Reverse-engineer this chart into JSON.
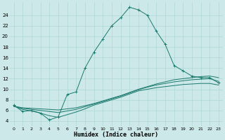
{
  "xlabel": "Humidex (Indice chaleur)",
  "bg_color": "#cce8e8",
  "grid_color": "#b0d8d8",
  "line_color": "#1a7a6e",
  "xlim": [
    -0.5,
    23.5
  ],
  "ylim": [
    3,
    26.5
  ],
  "xticks": [
    0,
    1,
    2,
    3,
    4,
    5,
    6,
    7,
    8,
    9,
    10,
    11,
    12,
    13,
    14,
    15,
    16,
    17,
    18,
    19,
    20,
    21,
    22,
    23
  ],
  "yticks": [
    4,
    6,
    8,
    10,
    12,
    14,
    16,
    18,
    20,
    22,
    24
  ],
  "line1_x": [
    0,
    1,
    2,
    3,
    4,
    5,
    6,
    7,
    8,
    9,
    10,
    11,
    12,
    13,
    14,
    15,
    16,
    17,
    18,
    19,
    20,
    21,
    22,
    23
  ],
  "line1_y": [
    7,
    5.8,
    6,
    5.5,
    4.2,
    4.8,
    9,
    9.5,
    14,
    17,
    19.5,
    22,
    23.5,
    25.5,
    25,
    24,
    21,
    18.5,
    14.5,
    13.5,
    12.5,
    12.2,
    12.2,
    11.2
  ],
  "line2_x": [
    0,
    1,
    2,
    3,
    4,
    5,
    6,
    7,
    8,
    9,
    10,
    11,
    12,
    13,
    14,
    15,
    16,
    17,
    18,
    19,
    20,
    21,
    22,
    23
  ],
  "line2_y": [
    6.8,
    6.5,
    6.4,
    6.3,
    6.2,
    6.1,
    6.3,
    6.5,
    6.9,
    7.3,
    7.8,
    8.3,
    8.8,
    9.4,
    10.0,
    10.5,
    11.0,
    11.4,
    11.8,
    12.0,
    12.2,
    12.4,
    12.5,
    12.2
  ],
  "line3_x": [
    0,
    1,
    2,
    3,
    4,
    5,
    6,
    7,
    8,
    9,
    10,
    11,
    12,
    13,
    14,
    15,
    16,
    17,
    18,
    19,
    20,
    21,
    22,
    23
  ],
  "line3_y": [
    6.8,
    6.4,
    6.2,
    6.0,
    5.8,
    5.6,
    5.9,
    6.2,
    6.7,
    7.2,
    7.7,
    8.2,
    8.7,
    9.3,
    9.9,
    10.4,
    10.8,
    11.1,
    11.4,
    11.6,
    11.8,
    11.9,
    12.0,
    11.5
  ],
  "line4_x": [
    0,
    1,
    2,
    3,
    4,
    5,
    6,
    7,
    8,
    9,
    10,
    11,
    12,
    13,
    14,
    15,
    16,
    17,
    18,
    19,
    20,
    21,
    22,
    23
  ],
  "line4_y": [
    6.8,
    6.2,
    5.9,
    5.5,
    5.0,
    4.7,
    5.2,
    5.7,
    6.3,
    7.0,
    7.5,
    8.0,
    8.5,
    9.1,
    9.7,
    10.0,
    10.3,
    10.5,
    10.7,
    10.9,
    11.0,
    11.1,
    11.1,
    10.8
  ]
}
